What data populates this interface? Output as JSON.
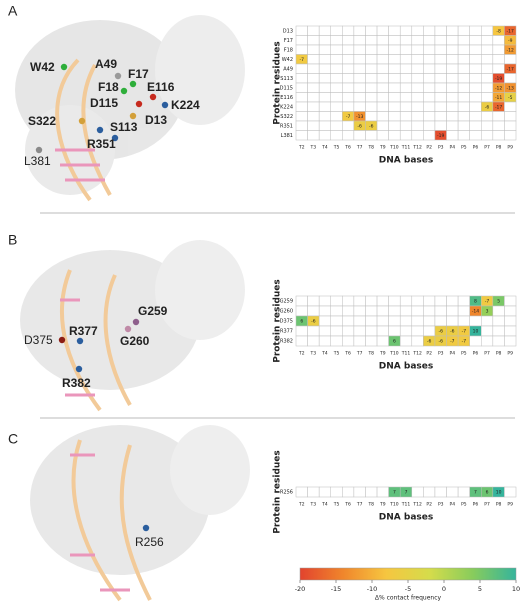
{
  "chart_data": [
    {
      "type": "heatmap",
      "panel": "A",
      "x_label": "DNA bases",
      "y_label": "Protein residues",
      "categories": [
        "T2",
        "T3",
        "T4",
        "T5",
        "T6",
        "T7",
        "T8",
        "T9",
        "T10",
        "T11",
        "T12",
        "P2",
        "P3",
        "P4",
        "P5",
        "P6",
        "P7",
        "P8",
        "P9"
      ],
      "rows": [
        "D13",
        "F17",
        "F18",
        "W42",
        "A49",
        "S113",
        "D115",
        "E116",
        "K224",
        "S322",
        "R351",
        "L381"
      ],
      "values": [
        [
          null,
          null,
          null,
          null,
          null,
          null,
          null,
          null,
          null,
          null,
          null,
          null,
          null,
          null,
          null,
          null,
          null,
          -8,
          -17
        ],
        [
          null,
          null,
          null,
          null,
          null,
          null,
          null,
          null,
          null,
          null,
          null,
          null,
          null,
          null,
          null,
          null,
          null,
          null,
          -9
        ],
        [
          null,
          null,
          null,
          null,
          null,
          null,
          null,
          null,
          null,
          null,
          null,
          null,
          null,
          null,
          null,
          null,
          null,
          null,
          -12
        ],
        [
          -7,
          null,
          null,
          null,
          null,
          null,
          null,
          null,
          null,
          null,
          null,
          null,
          null,
          null,
          null,
          null,
          null,
          null,
          null
        ],
        [
          null,
          null,
          null,
          null,
          null,
          null,
          null,
          null,
          null,
          null,
          null,
          null,
          null,
          null,
          null,
          null,
          null,
          null,
          -17
        ],
        [
          null,
          null,
          null,
          null,
          null,
          null,
          null,
          null,
          null,
          null,
          null,
          null,
          null,
          null,
          null,
          null,
          null,
          -19,
          null
        ],
        [
          null,
          null,
          null,
          null,
          null,
          null,
          null,
          null,
          null,
          null,
          null,
          null,
          null,
          null,
          null,
          null,
          null,
          -12,
          -13
        ],
        [
          null,
          null,
          null,
          null,
          null,
          null,
          null,
          null,
          null,
          null,
          null,
          null,
          null,
          null,
          null,
          null,
          null,
          -11,
          -5
        ],
        [
          null,
          null,
          null,
          null,
          null,
          null,
          null,
          null,
          null,
          null,
          null,
          null,
          null,
          null,
          null,
          null,
          -6,
          -17,
          null
        ],
        [
          null,
          null,
          null,
          null,
          -7,
          -13,
          null,
          null,
          null,
          null,
          null,
          null,
          null,
          null,
          null,
          null,
          null,
          null,
          null
        ],
        [
          null,
          null,
          null,
          null,
          null,
          -6,
          -6,
          null,
          null,
          null,
          null,
          null,
          null,
          null,
          null,
          null,
          null,
          null,
          null
        ],
        [
          null,
          null,
          null,
          null,
          null,
          null,
          null,
          null,
          null,
          null,
          null,
          null,
          -19,
          null,
          null,
          null,
          null,
          null,
          null
        ]
      ]
    },
    {
      "type": "heatmap",
      "panel": "B",
      "x_label": "DNA bases",
      "y_label": "Protein residues",
      "categories": [
        "T2",
        "T3",
        "T4",
        "T5",
        "T6",
        "T7",
        "T8",
        "T9",
        "T10",
        "T11",
        "T12",
        "P2",
        "P3",
        "P4",
        "P5",
        "P6",
        "P7",
        "P8",
        "P9"
      ],
      "rows": [
        "G259",
        "G260",
        "D375",
        "R377",
        "R382"
      ],
      "values": [
        [
          null,
          null,
          null,
          null,
          null,
          null,
          null,
          null,
          null,
          null,
          null,
          null,
          null,
          null,
          null,
          8,
          -7,
          5,
          null
        ],
        [
          null,
          null,
          null,
          null,
          null,
          null,
          null,
          null,
          null,
          null,
          null,
          null,
          null,
          null,
          null,
          -14,
          3,
          null,
          null
        ],
        [
          6,
          -6,
          null,
          null,
          null,
          null,
          null,
          null,
          null,
          null,
          null,
          null,
          null,
          null,
          null,
          null,
          null,
          null,
          null
        ],
        [
          null,
          null,
          null,
          null,
          null,
          null,
          null,
          null,
          null,
          null,
          null,
          null,
          -6,
          -6,
          -7,
          10,
          null,
          null,
          null
        ],
        [
          null,
          null,
          null,
          null,
          null,
          null,
          null,
          null,
          6,
          null,
          null,
          -6,
          -6,
          -7,
          -7,
          null,
          null,
          null,
          null
        ]
      ]
    },
    {
      "type": "heatmap",
      "panel": "C",
      "x_label": "DNA bases",
      "y_label": "Protein residues",
      "categories": [
        "T2",
        "T3",
        "T4",
        "T5",
        "T6",
        "T7",
        "T8",
        "T9",
        "T10",
        "T11",
        "T12",
        "P2",
        "P3",
        "P4",
        "P5",
        "P6",
        "P7",
        "P8",
        "P9"
      ],
      "rows": [
        "R256"
      ],
      "values": [
        [
          null,
          null,
          null,
          null,
          null,
          null,
          null,
          null,
          7,
          7,
          null,
          null,
          null,
          null,
          null,
          7,
          6,
          10,
          null
        ]
      ]
    }
  ],
  "structures": [
    {
      "residues": [
        "W42",
        "A49",
        "F17",
        "F18",
        "E116",
        "D115",
        "K224",
        "S322",
        "S113",
        "D13",
        "R351",
        "L381"
      ]
    },
    {
      "residues": [
        "G259",
        "G260",
        "R377",
        "D375",
        "R382"
      ]
    },
    {
      "residues": [
        "R256"
      ]
    }
  ],
  "colorbar": {
    "label": "Δ% contact frequency",
    "lim": [
      -20,
      10
    ],
    "ticks": [
      -20,
      -15,
      -10,
      -5,
      0,
      5,
      10
    ],
    "colors": [
      "#e2432e",
      "#f0862c",
      "#f6c640",
      "#d5dc4b",
      "#88cc5c",
      "#35b49c"
    ]
  }
}
